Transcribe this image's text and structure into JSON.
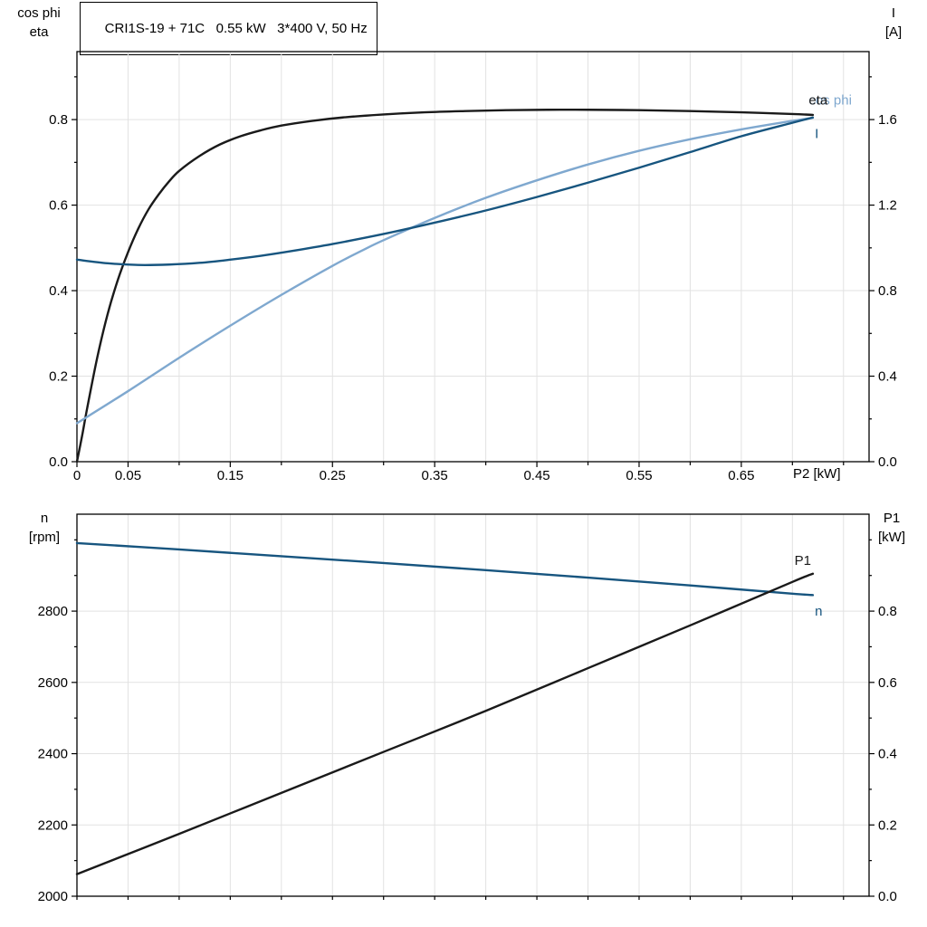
{
  "colors": {
    "black": "#1a1a1a",
    "dark_blue": "#17557F",
    "light_blue": "#7FA8CF",
    "grid": "#e2e2e2",
    "axis": "#000000"
  },
  "title_box": {
    "text": "CRI1S-19 + 71C   0.55 kW   3*400 V, 50 Hz"
  },
  "chart_data": [
    {
      "type": "line",
      "title": "CRI1S-19 + 71C   0.55 kW   3*400 V, 50 Hz",
      "xlabel": "P2 [kW]",
      "axis_left_title": [
        "cos phi",
        "eta"
      ],
      "axis_right_title": [
        "I",
        "[A]"
      ],
      "xlim": [
        0,
        0.775
      ],
      "ylim_left": [
        0,
        0.959
      ],
      "ylim_right": [
        0,
        1.918
      ],
      "x": {
        "minor_step": 0.05,
        "show_labels": true,
        "ticks": [
          {
            "v": 0,
            "t": "0"
          },
          {
            "v": 0.05,
            "t": "0.05"
          },
          {
            "v": 0.15,
            "t": "0.15"
          },
          {
            "v": 0.25,
            "t": "0.25"
          },
          {
            "v": 0.35,
            "t": "0.35"
          },
          {
            "v": 0.45,
            "t": "0.45"
          },
          {
            "v": 0.55,
            "t": "0.55"
          },
          {
            "v": 0.65,
            "t": "0.65"
          }
        ]
      },
      "y_left": {
        "minor_step": 0.1,
        "ticks": [
          {
            "v": 0,
            "t": "0.0"
          },
          {
            "v": 0.2,
            "t": "0.2"
          },
          {
            "v": 0.4,
            "t": "0.4"
          },
          {
            "v": 0.6,
            "t": "0.6"
          },
          {
            "v": 0.8,
            "t": "0.8"
          }
        ]
      },
      "y_right": {
        "minor_step": 0.2,
        "ticks": [
          {
            "v": 0,
            "t": "0.0"
          },
          {
            "v": 0.4,
            "t": "0.4"
          },
          {
            "v": 0.8,
            "t": "0.8"
          },
          {
            "v": 1.2,
            "t": "1.2"
          },
          {
            "v": 1.6,
            "t": "1.6"
          }
        ]
      },
      "grid": {
        "x_step": 0.05
      },
      "series": [
        {
          "name": "eta",
          "axis": "left",
          "color_key": "black",
          "width": 2.4,
          "points": [
            [
              0,
              0
            ],
            [
              0.005,
              0.06
            ],
            [
              0.01,
              0.125
            ],
            [
              0.02,
              0.245
            ],
            [
              0.03,
              0.345
            ],
            [
              0.04,
              0.425
            ],
            [
              0.05,
              0.49
            ],
            [
              0.06,
              0.545
            ],
            [
              0.07,
              0.59
            ],
            [
              0.08,
              0.625
            ],
            [
              0.09,
              0.655
            ],
            [
              0.1,
              0.68
            ],
            [
              0.12,
              0.715
            ],
            [
              0.14,
              0.742
            ],
            [
              0.16,
              0.761
            ],
            [
              0.18,
              0.775
            ],
            [
              0.2,
              0.786
            ],
            [
              0.23,
              0.797
            ],
            [
              0.26,
              0.805
            ],
            [
              0.3,
              0.812
            ],
            [
              0.34,
              0.817
            ],
            [
              0.38,
              0.82
            ],
            [
              0.42,
              0.822
            ],
            [
              0.46,
              0.823
            ],
            [
              0.5,
              0.823
            ],
            [
              0.55,
              0.822
            ],
            [
              0.6,
              0.82
            ],
            [
              0.65,
              0.817
            ],
            [
              0.7,
              0.813
            ],
            [
              0.72,
              0.811
            ]
          ]
        },
        {
          "name": "cos-phi",
          "axis": "left",
          "color_key": "light_blue",
          "width": 2.4,
          "points": [
            [
              0,
              0.09
            ],
            [
              0.05,
              0.165
            ],
            [
              0.1,
              0.243
            ],
            [
              0.15,
              0.318
            ],
            [
              0.2,
              0.39
            ],
            [
              0.25,
              0.458
            ],
            [
              0.28,
              0.495
            ],
            [
              0.3,
              0.518
            ],
            [
              0.35,
              0.57
            ],
            [
              0.4,
              0.617
            ],
            [
              0.45,
              0.658
            ],
            [
              0.5,
              0.695
            ],
            [
              0.55,
              0.727
            ],
            [
              0.6,
              0.754
            ],
            [
              0.65,
              0.777
            ],
            [
              0.7,
              0.797
            ],
            [
              0.72,
              0.804
            ]
          ]
        },
        {
          "name": "I",
          "axis": "right",
          "color_key": "dark_blue",
          "width": 2.4,
          "points": [
            [
              0,
              0.945
            ],
            [
              0.03,
              0.928
            ],
            [
              0.06,
              0.92
            ],
            [
              0.09,
              0.922
            ],
            [
              0.12,
              0.93
            ],
            [
              0.15,
              0.945
            ],
            [
              0.18,
              0.963
            ],
            [
              0.21,
              0.985
            ],
            [
              0.25,
              1.018
            ],
            [
              0.3,
              1.065
            ],
            [
              0.35,
              1.118
            ],
            [
              0.4,
              1.175
            ],
            [
              0.45,
              1.238
            ],
            [
              0.5,
              1.305
            ],
            [
              0.55,
              1.375
            ],
            [
              0.6,
              1.448
            ],
            [
              0.65,
              1.522
            ],
            [
              0.7,
              1.585
            ],
            [
              0.72,
              1.61
            ]
          ]
        }
      ],
      "labels": [
        {
          "text": "cos phi",
          "color_key": "light_blue",
          "axis": "left",
          "x": 0.716,
          "y": 0.835
        },
        {
          "text": "eta",
          "color_key": "black",
          "axis": "left",
          "x": 0.716,
          "y": 0.835
        },
        {
          "text": "I",
          "color_key": "dark_blue",
          "axis": "left",
          "x": 0.722,
          "y": 0.757
        }
      ]
    },
    {
      "type": "line",
      "xlabel": "",
      "axis_left_title": [
        "n",
        "[rpm]"
      ],
      "axis_right_title": [
        "P1",
        "[kW]"
      ],
      "xlim": [
        0,
        0.775
      ],
      "ylim_left": [
        2000,
        3072
      ],
      "ylim_right": [
        0,
        1.072
      ],
      "x": {
        "minor_step": 0.05,
        "show_labels": false,
        "ticks": []
      },
      "y_left": {
        "minor_step": 100,
        "ticks": [
          {
            "v": 2000,
            "t": "2000"
          },
          {
            "v": 2200,
            "t": "2200"
          },
          {
            "v": 2400,
            "t": "2400"
          },
          {
            "v": 2600,
            "t": "2600"
          },
          {
            "v": 2800,
            "t": "2800"
          }
        ]
      },
      "y_right": {
        "minor_step": 0.1,
        "ticks": [
          {
            "v": 0,
            "t": "0.0"
          },
          {
            "v": 0.2,
            "t": "0.2"
          },
          {
            "v": 0.4,
            "t": "0.4"
          },
          {
            "v": 0.6,
            "t": "0.6"
          },
          {
            "v": 0.8,
            "t": "0.8"
          }
        ]
      },
      "grid": {
        "x_step": 0.05
      },
      "series": [
        {
          "name": "n",
          "axis": "left",
          "color_key": "dark_blue",
          "width": 2.4,
          "points": [
            [
              0,
              2991
            ],
            [
              0.1,
              2973
            ],
            [
              0.2,
              2954
            ],
            [
              0.3,
              2935
            ],
            [
              0.4,
              2915
            ],
            [
              0.5,
              2894
            ],
            [
              0.6,
              2872
            ],
            [
              0.7,
              2849
            ],
            [
              0.72,
              2845
            ]
          ]
        },
        {
          "name": "P1",
          "axis": "right",
          "color_key": "black",
          "width": 2.4,
          "points": [
            [
              0,
              0.062
            ],
            [
              0.1,
              0.175
            ],
            [
              0.2,
              0.29
            ],
            [
              0.3,
              0.405
            ],
            [
              0.4,
              0.52
            ],
            [
              0.5,
              0.64
            ],
            [
              0.6,
              0.76
            ],
            [
              0.7,
              0.882
            ],
            [
              0.72,
              0.905
            ]
          ]
        }
      ],
      "labels": [
        {
          "text": "P1",
          "color_key": "black",
          "axis": "left",
          "x": 0.702,
          "y": 2930
        },
        {
          "text": "n",
          "color_key": "dark_blue",
          "axis": "left",
          "x": 0.722,
          "y": 2787
        }
      ]
    }
  ]
}
